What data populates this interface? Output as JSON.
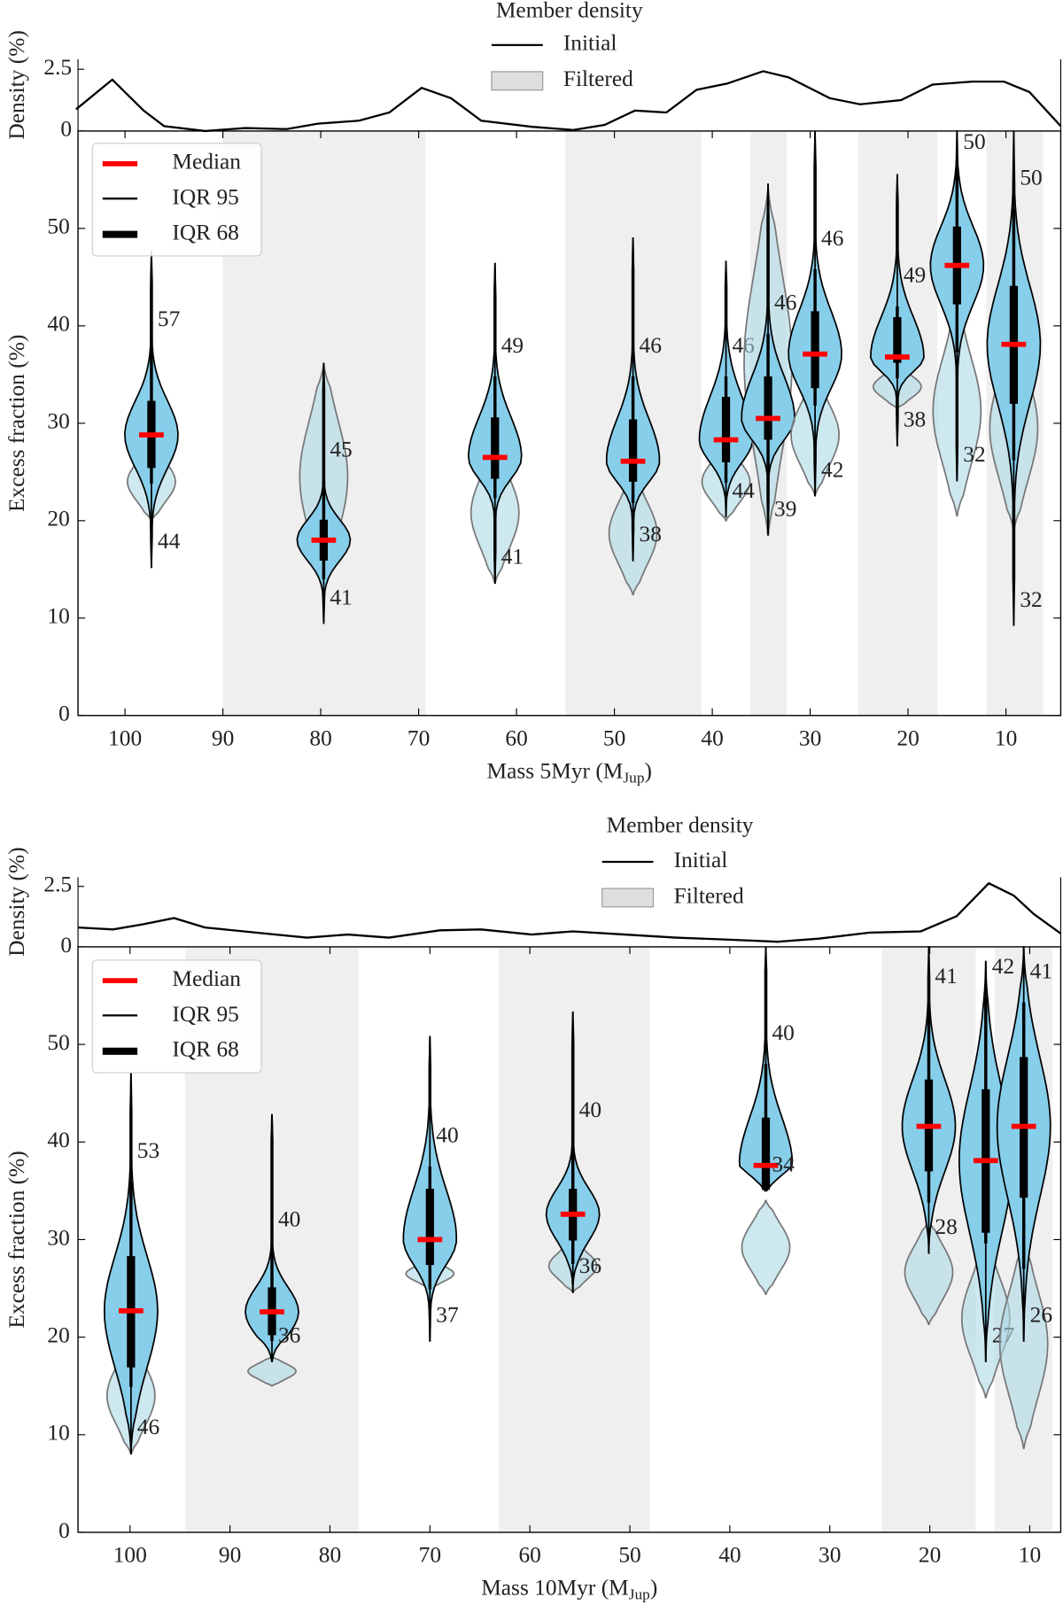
{
  "chart_data": [
    {
      "type": "violin",
      "legend_title": "Member density",
      "density_legend": [
        "Initial",
        "Filtered"
      ],
      "density_label": "Density (%)",
      "dlim": [
        0,
        2.9
      ],
      "dticks": [
        0,
        2.5
      ],
      "density": {
        "x": [
          105,
          101.3,
          98.1,
          96,
          91.8,
          87.7,
          83.5,
          80.3,
          76.1,
          73,
          69.7,
          66.7,
          63.6,
          58.4,
          54.2,
          51,
          47.9,
          44.7,
          41.6,
          38.5,
          34.8,
          32.2,
          28,
          24.9,
          20.7,
          17.5,
          13.4,
          10.2,
          7.6,
          4.4
        ],
        "values": [
          0.88,
          2.08,
          0.83,
          0.2,
          0,
          0.12,
          0.08,
          0.3,
          0.42,
          0.75,
          1.75,
          1.33,
          0.42,
          0.17,
          0.04,
          0.25,
          0.83,
          0.75,
          1.67,
          1.92,
          2.42,
          2.17,
          1.33,
          1.08,
          1.25,
          1.88,
          2.0,
          2.0,
          1.58,
          0.2
        ]
      },
      "ylabel": "Excess fraction (%)",
      "ylim": [
        0,
        60
      ],
      "yticks": [
        0,
        10,
        20,
        30,
        40,
        50
      ],
      "xlabel": {
        "text": "Mass 5Myr (M",
        "sub": "Jup",
        "after": ")"
      },
      "xlim": [
        104.8,
        4.4
      ],
      "xticks": [
        100,
        90,
        80,
        70,
        60,
        50,
        40,
        30,
        20,
        10
      ],
      "bands": [
        [
          90,
          69.3
        ],
        [
          55,
          41.1
        ],
        [
          36.1,
          32.4
        ],
        [
          25.1,
          17
        ],
        [
          12,
          6.2
        ]
      ],
      "legend": [
        "Median",
        "IQR 95",
        "IQR 68"
      ],
      "colors": {
        "violin": "#87ceeb",
        "filtered": "#add8e6",
        "median": "#ff0000",
        "band": "#efefef"
      },
      "violins": [
        {
          "x": 97.3,
          "median": 28.8,
          "iqr68": [
            25.4,
            32.3
          ],
          "iqr95": [
            23.8,
            37.5
          ],
          "extent": [
            15.2,
            47.6
          ],
          "filtered": [
            20,
            28
          ],
          "label_top": 57,
          "label_bottom": 44
        },
        {
          "x": 79.7,
          "median": 18,
          "iqr68": [
            15.9,
            20.1
          ],
          "iqr95": [
            14,
            24.1
          ],
          "extent": [
            9.4,
            36.2
          ],
          "filtered": [
            13,
            36
          ],
          "label_top": 45,
          "label_bottom": 41
        },
        {
          "x": 62.2,
          "median": 26.5,
          "iqr68": [
            24.3,
            30.6
          ],
          "iqr95": [
            22.3,
            34.8
          ],
          "extent": [
            13.6,
            46.4
          ],
          "filtered": [
            13.6,
            28
          ],
          "label_top": 49,
          "label_bottom": 41
        },
        {
          "x": 48.1,
          "median": 26.1,
          "iqr68": [
            24,
            30.4
          ],
          "iqr95": [
            21.8,
            34.8
          ],
          "extent": [
            15.9,
            49
          ],
          "filtered": [
            12.4,
            25
          ],
          "label_top": 46,
          "label_bottom": 38
        },
        {
          "x": 38.6,
          "median": 28.3,
          "iqr68": [
            26,
            32.7
          ],
          "iqr95": [
            23.9,
            34.8
          ],
          "extent": [
            20.4,
            46.6
          ],
          "filtered": [
            20,
            28
          ],
          "label_top": 46,
          "label_bottom": 44
        },
        {
          "x": 34.3,
          "median": 30.5,
          "iqr68": [
            28.3,
            34.8
          ],
          "iqr95": [
            25.2,
            39.2
          ],
          "extent": [
            18.5,
            54.6
          ],
          "filtered": [
            18.5,
            54
          ],
          "label_top": 46,
          "label_bottom": 39
        },
        {
          "x": 29.5,
          "median": 37.1,
          "iqr68": [
            33.6,
            41.5
          ],
          "iqr95": [
            31.8,
            45.8
          ],
          "extent": [
            22.5,
            60
          ],
          "filtered": [
            22.6,
            35
          ],
          "label_top": 46,
          "label_bottom": 42
        },
        {
          "x": 21.1,
          "median": 36.8,
          "iqr68": [
            36.2,
            40.9
          ],
          "iqr95": [
            34.6,
            42
          ],
          "extent": [
            27.7,
            55.5
          ],
          "filtered": [
            31.5,
            36
          ],
          "label_top": 49,
          "label_bottom": 38
        },
        {
          "x": 15,
          "median": 46.2,
          "iqr68": [
            42.2,
            50.2
          ],
          "iqr95": [
            37.3,
            55.7
          ],
          "extent": [
            24.1,
            60
          ],
          "filtered": [
            20.5,
            42
          ],
          "label_top": 50,
          "label_bottom": 32
        },
        {
          "x": 9.2,
          "median": 38.1,
          "iqr68": [
            32,
            44.1
          ],
          "iqr95": [
            26.2,
            52
          ],
          "extent": [
            9.2,
            60
          ],
          "filtered": [
            19,
            40
          ],
          "label_top": 50,
          "label_bottom": 32
        }
      ]
    },
    {
      "type": "violin",
      "legend_title": "Member density",
      "density_legend": [
        "Initial",
        "Filtered"
      ],
      "density_label": "Density (%)",
      "dlim": [
        0,
        2.88
      ],
      "dticks": [
        0,
        2.5
      ],
      "density": {
        "x": [
          105.2,
          101.7,
          98.7,
          95.6,
          92.5,
          87.4,
          82.3,
          78.2,
          74.1,
          69,
          64.9,
          59.8,
          55.7,
          50.5,
          45.4,
          40.3,
          35.2,
          31.1,
          26,
          20.9,
          17.3,
          14.1,
          11.6,
          9.6,
          6.9
        ],
        "values": [
          0.8,
          0.72,
          0.93,
          1.19,
          0.8,
          0.59,
          0.38,
          0.51,
          0.38,
          0.68,
          0.72,
          0.51,
          0.64,
          0.51,
          0.38,
          0.3,
          0.21,
          0.34,
          0.59,
          0.64,
          1.27,
          2.63,
          2.12,
          1.36,
          0.55
        ]
      },
      "ylabel": "Excess fraction (%)",
      "ylim": [
        0,
        60
      ],
      "yticks": [
        0,
        10,
        20,
        30,
        40,
        50
      ],
      "xlabel": {
        "text": "Mass 10Myr (M",
        "sub": "Jup",
        "after": ")"
      },
      "xlim": [
        105.2,
        6.9
      ],
      "xticks": [
        100,
        90,
        80,
        70,
        60,
        50,
        40,
        30,
        20,
        10
      ],
      "bands": [
        [
          94.5,
          77.1
        ],
        [
          63.1,
          48
        ],
        [
          24.8,
          15.4
        ],
        [
          13.5,
          7.75
        ]
      ],
      "legend": [
        "Median",
        "IQR 95",
        "IQR 68"
      ],
      "colors": {
        "violin": "#87ceeb",
        "filtered": "#add8e6",
        "median": "#ff0000",
        "band": "#efefef"
      },
      "violins": [
        {
          "x": 99.9,
          "median": 22.7,
          "iqr68": [
            16.9,
            28.3
          ],
          "iqr95": [
            14.9,
            35.9
          ],
          "extent": [
            8.1,
            47
          ],
          "filtered": [
            8,
            20
          ],
          "label_top": 53,
          "label_bottom": 46
        },
        {
          "x": 85.8,
          "median": 22.6,
          "iqr68": [
            20.2,
            25.1
          ],
          "iqr95": [
            19.6,
            28.9
          ],
          "extent": [
            17.5,
            42.8
          ],
          "filtered": [
            15,
            18
          ],
          "label_top": 40,
          "label_bottom": 36
        },
        {
          "x": 70,
          "median": 30,
          "iqr68": [
            27.4,
            35.2
          ],
          "iqr95": [
            24.9,
            37.5
          ],
          "extent": [
            19.6,
            50.8
          ],
          "filtered": [
            25,
            28
          ],
          "label_top": 40,
          "label_bottom": 37
        },
        {
          "x": 55.7,
          "median": 32.6,
          "iqr68": [
            29.9,
            35.2
          ],
          "iqr95": [
            27.5,
            40.1
          ],
          "extent": [
            24.6,
            53.3
          ],
          "filtered": [
            24.6,
            30
          ],
          "label_top": 40,
          "label_bottom": 36
        },
        {
          "x": 36.4,
          "median": 37.6,
          "iqr68": [
            35.1,
            42.5
          ],
          "iqr95": [
            35,
            48
          ],
          "extent": [
            35,
            60
          ],
          "filtered": [
            24.4,
            34
          ],
          "label_top": 40,
          "label_bottom": 34
        },
        {
          "x": 20.1,
          "median": 41.6,
          "iqr68": [
            37,
            46.4
          ],
          "iqr95": [
            33.8,
            53.8
          ],
          "extent": [
            28.6,
            60
          ],
          "filtered": [
            21.3,
            32
          ],
          "label_top": 41,
          "label_bottom": 28
        },
        {
          "x": 14.4,
          "median": 38.1,
          "iqr68": [
            30.7,
            45.4
          ],
          "iqr95": [
            29.6,
            54.8
          ],
          "extent": [
            17.5,
            58.5
          ],
          "filtered": [
            13.8,
            30
          ],
          "label_top": 42,
          "label_bottom": 27
        },
        {
          "x": 10.6,
          "median": 41.6,
          "iqr68": [
            34.3,
            48.7
          ],
          "iqr95": [
            27,
            54.3
          ],
          "extent": [
            19.6,
            60
          ],
          "filtered": [
            8.6,
            30
          ],
          "label_top": 41,
          "label_bottom": 26
        }
      ]
    }
  ]
}
